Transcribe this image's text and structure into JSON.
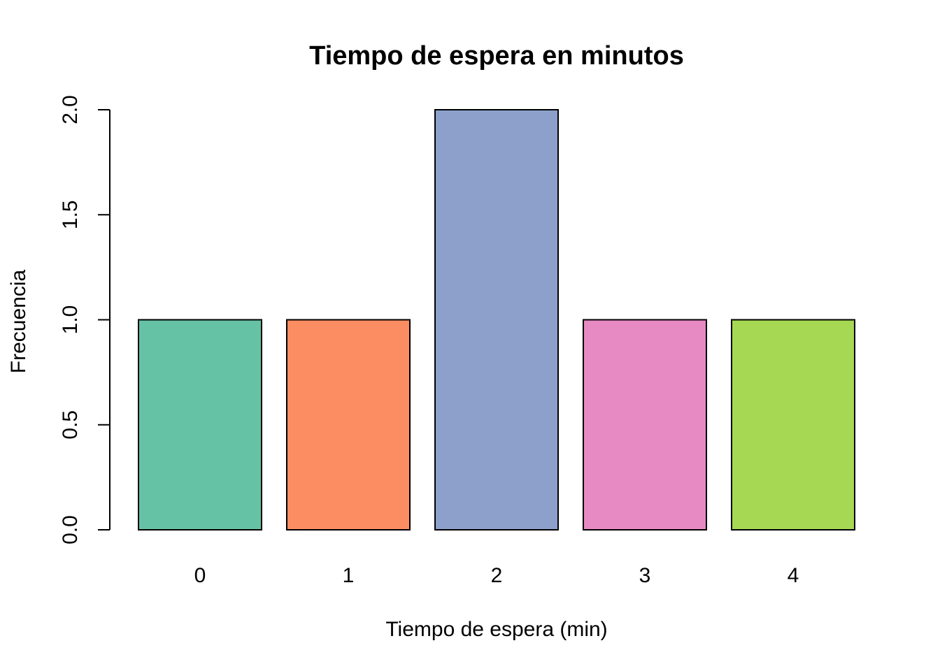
{
  "chart_data": {
    "type": "bar",
    "title": "Tiempo de espera en minutos",
    "xlabel": "Tiempo de espera (min)",
    "ylabel": "Frecuencia",
    "categories": [
      "0",
      "1",
      "2",
      "3",
      "4"
    ],
    "values": [
      1,
      1,
      2,
      1,
      1
    ],
    "colors": [
      "#66c2a5",
      "#fc8d62",
      "#8da0cb",
      "#e78ac3",
      "#a6d854"
    ],
    "ylim": [
      0,
      2
    ],
    "yticks": [
      0,
      0.5,
      1,
      1.5,
      2
    ],
    "ytick_labels": [
      "0.0",
      "0.5",
      "1.0",
      "1.5",
      "2.0"
    ],
    "grid": false,
    "legend": "none"
  }
}
